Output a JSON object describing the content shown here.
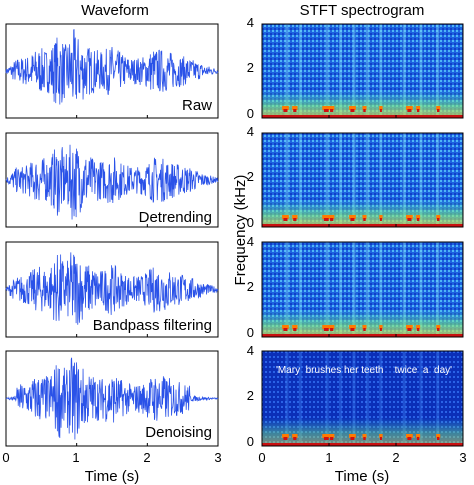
{
  "chart_data": [
    {
      "type": "line",
      "title": "Waveform",
      "xlabel": "Time (s)",
      "xlim": [
        0,
        3
      ],
      "xticks": [
        "0",
        "1",
        "2",
        "3"
      ],
      "panels": [
        {
          "label": "Raw"
        },
        {
          "label": "Detrending"
        },
        {
          "label": "Bandpass filtering"
        },
        {
          "label": "Denoising"
        }
      ],
      "envelope": {
        "x": [
          0,
          0.15,
          0.3,
          0.45,
          0.6,
          0.75,
          0.85,
          0.95,
          1.05,
          1.2,
          1.35,
          1.5,
          1.65,
          1.8,
          1.95,
          2.1,
          2.25,
          2.4,
          2.6,
          2.8,
          3.0
        ],
        "amplitude": [
          0.05,
          0.3,
          0.35,
          0.55,
          0.5,
          0.9,
          0.6,
          1.0,
          0.75,
          0.55,
          0.45,
          0.6,
          0.4,
          0.3,
          0.35,
          0.55,
          0.5,
          0.4,
          0.3,
          0.15,
          0.05
        ]
      },
      "color": "#2a52e8"
    },
    {
      "type": "heatmap",
      "title": "STFT spectrogram",
      "xlabel": "Time (s)",
      "ylabel": "Frequency (kHz)",
      "xlim": [
        0,
        3
      ],
      "ylim": [
        0,
        4
      ],
      "xticks": [
        "0",
        "1",
        "2",
        "3"
      ],
      "yticks": [
        "0",
        "2",
        "4"
      ],
      "panels": [
        {
          "annotation": ""
        },
        {
          "annotation": ""
        },
        {
          "annotation": ""
        },
        {
          "annotation": "'Mary  brushes her teeth    twice  a  day'"
        }
      ],
      "colormap": [
        "#00008f",
        "#0000ff",
        "#0080ff",
        "#00ffff",
        "#80ff80",
        "#ffff00",
        "#ff8000",
        "#ff0000",
        "#800000"
      ]
    }
  ]
}
